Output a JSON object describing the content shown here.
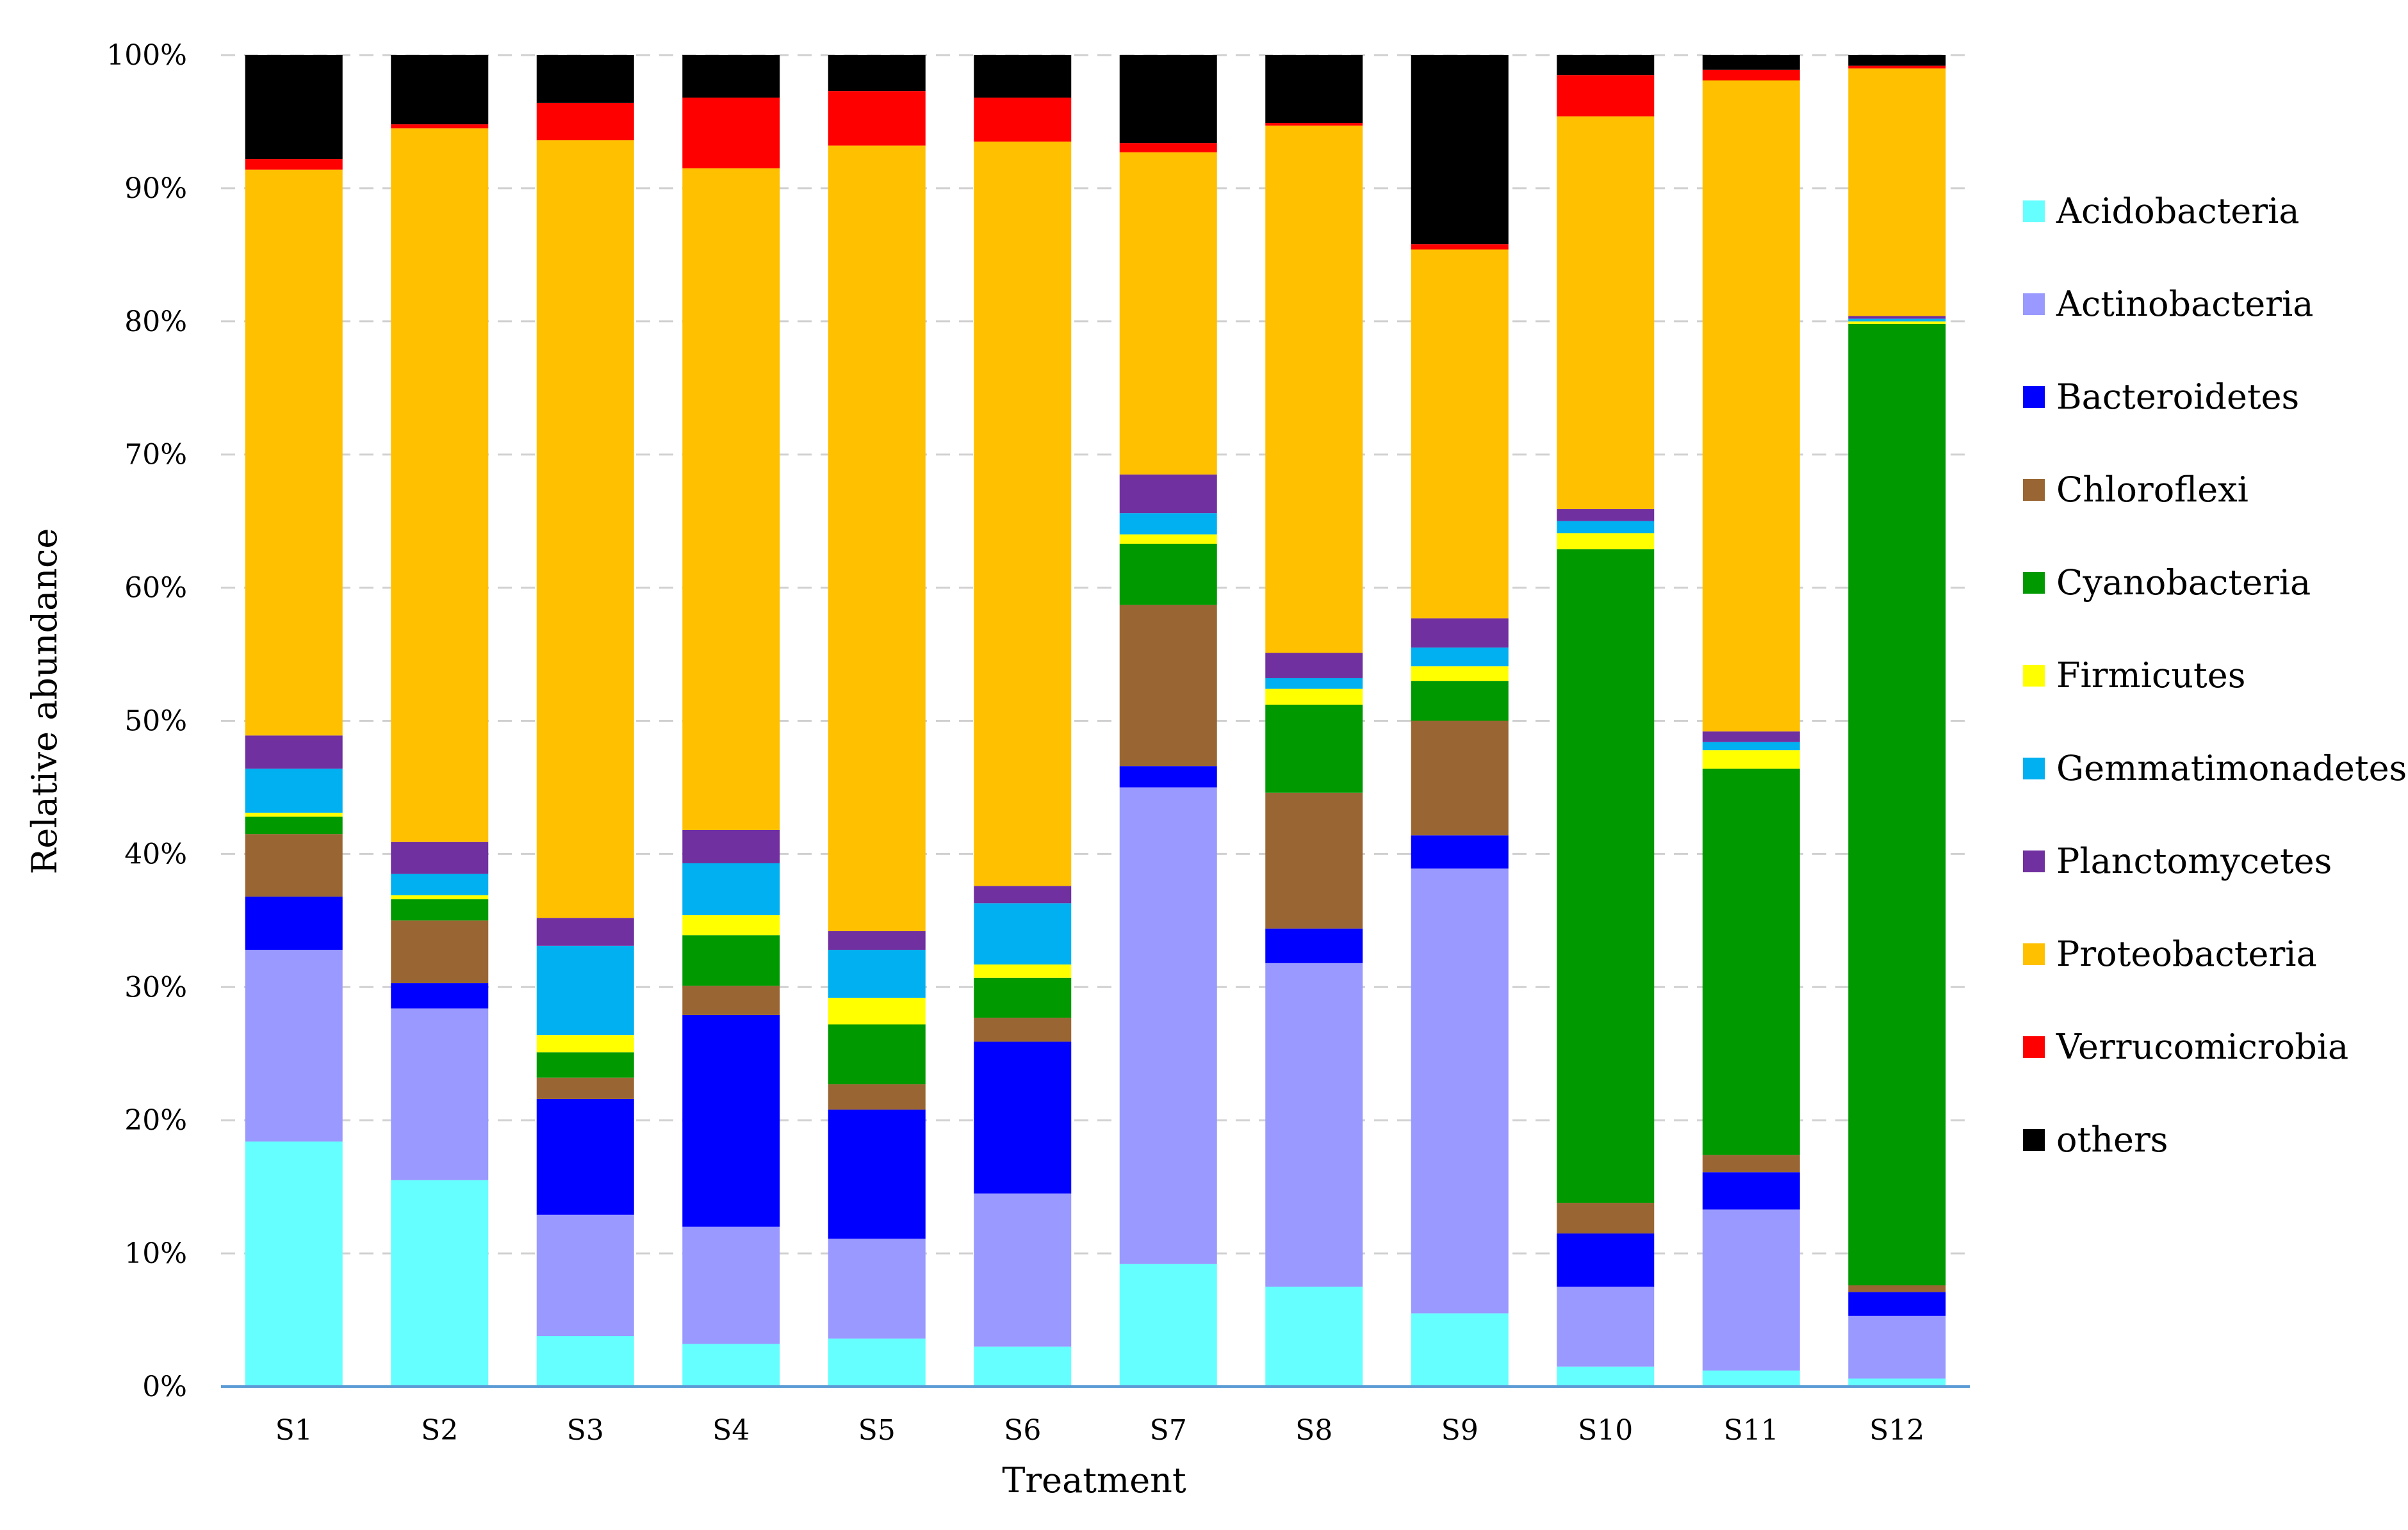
{
  "chart_data": {
    "type": "bar",
    "stacked": true,
    "percent": true,
    "xlabel": "Treatment",
    "ylabel": "Relative abundance",
    "ylim": [
      0,
      100
    ],
    "y_ticks": [
      "0%",
      "10%",
      "20%",
      "30%",
      "40%",
      "50%",
      "60%",
      "70%",
      "80%",
      "90%",
      "100%"
    ],
    "grid": "horizontal dashed",
    "legend_position": "right",
    "categories": [
      "S1",
      "S2",
      "S3",
      "S4",
      "S5",
      "S6",
      "S7",
      "S8",
      "S9",
      "S10",
      "S11",
      "S12"
    ],
    "series": [
      {
        "name": "Acidobacteria",
        "color": "#66FFFF",
        "values": [
          18.4,
          15.5,
          3.8,
          3.2,
          3.6,
          3.0,
          9.2,
          7.5,
          5.5,
          1.5,
          1.2,
          0.6
        ]
      },
      {
        "name": "Actinobacteria",
        "color": "#9999FF",
        "values": [
          14.4,
          12.9,
          9.1,
          8.8,
          7.5,
          11.5,
          35.8,
          24.3,
          33.4,
          6.0,
          12.1,
          4.7
        ]
      },
      {
        "name": "Bacteroidetes",
        "color": "#0000FF",
        "values": [
          4.0,
          1.9,
          8.7,
          15.9,
          9.7,
          11.4,
          1.6,
          2.6,
          2.5,
          4.0,
          2.8,
          1.8
        ]
      },
      {
        "name": "Chloroflexi",
        "color": "#996633",
        "values": [
          4.7,
          4.7,
          1.6,
          2.2,
          1.9,
          1.8,
          12.1,
          10.2,
          8.6,
          2.3,
          1.3,
          0.5
        ]
      },
      {
        "name": "Cyanobacteria",
        "color": "#009900",
        "values": [
          1.3,
          1.6,
          1.9,
          3.8,
          4.5,
          3.0,
          4.6,
          6.6,
          3.0,
          49.1,
          29.0,
          72.2
        ]
      },
      {
        "name": "Firmicutes",
        "color": "#FFFF00",
        "values": [
          0.3,
          0.3,
          1.3,
          1.5,
          2.0,
          1.0,
          0.7,
          1.2,
          1.1,
          1.2,
          1.4,
          0.2
        ]
      },
      {
        "name": "Gemmatimonadetes",
        "color": "#00B0F0",
        "values": [
          3.3,
          1.6,
          6.7,
          3.9,
          3.6,
          4.6,
          1.6,
          0.8,
          1.4,
          0.9,
          0.6,
          0.2
        ]
      },
      {
        "name": "Planctomycetes",
        "color": "#7030A0",
        "values": [
          2.5,
          2.4,
          2.1,
          2.5,
          1.4,
          1.3,
          2.9,
          1.9,
          2.2,
          0.9,
          0.8,
          0.2
        ]
      },
      {
        "name": "Proteobacteria",
        "color": "#FFC000",
        "values": [
          42.5,
          53.6,
          58.4,
          49.7,
          59.0,
          55.9,
          24.2,
          39.6,
          27.7,
          29.5,
          48.9,
          18.6
        ]
      },
      {
        "name": "Verrucomicrobia",
        "color": "#FF0000",
        "values": [
          0.8,
          0.3,
          2.8,
          5.3,
          4.1,
          3.3,
          0.7,
          0.2,
          0.4,
          3.1,
          0.8,
          0.2
        ]
      },
      {
        "name": "others",
        "color": "#000000",
        "values": [
          7.8,
          5.2,
          3.6,
          3.2,
          2.7,
          3.2,
          6.6,
          5.1,
          14.2,
          1.5,
          1.1,
          0.8
        ]
      }
    ]
  }
}
